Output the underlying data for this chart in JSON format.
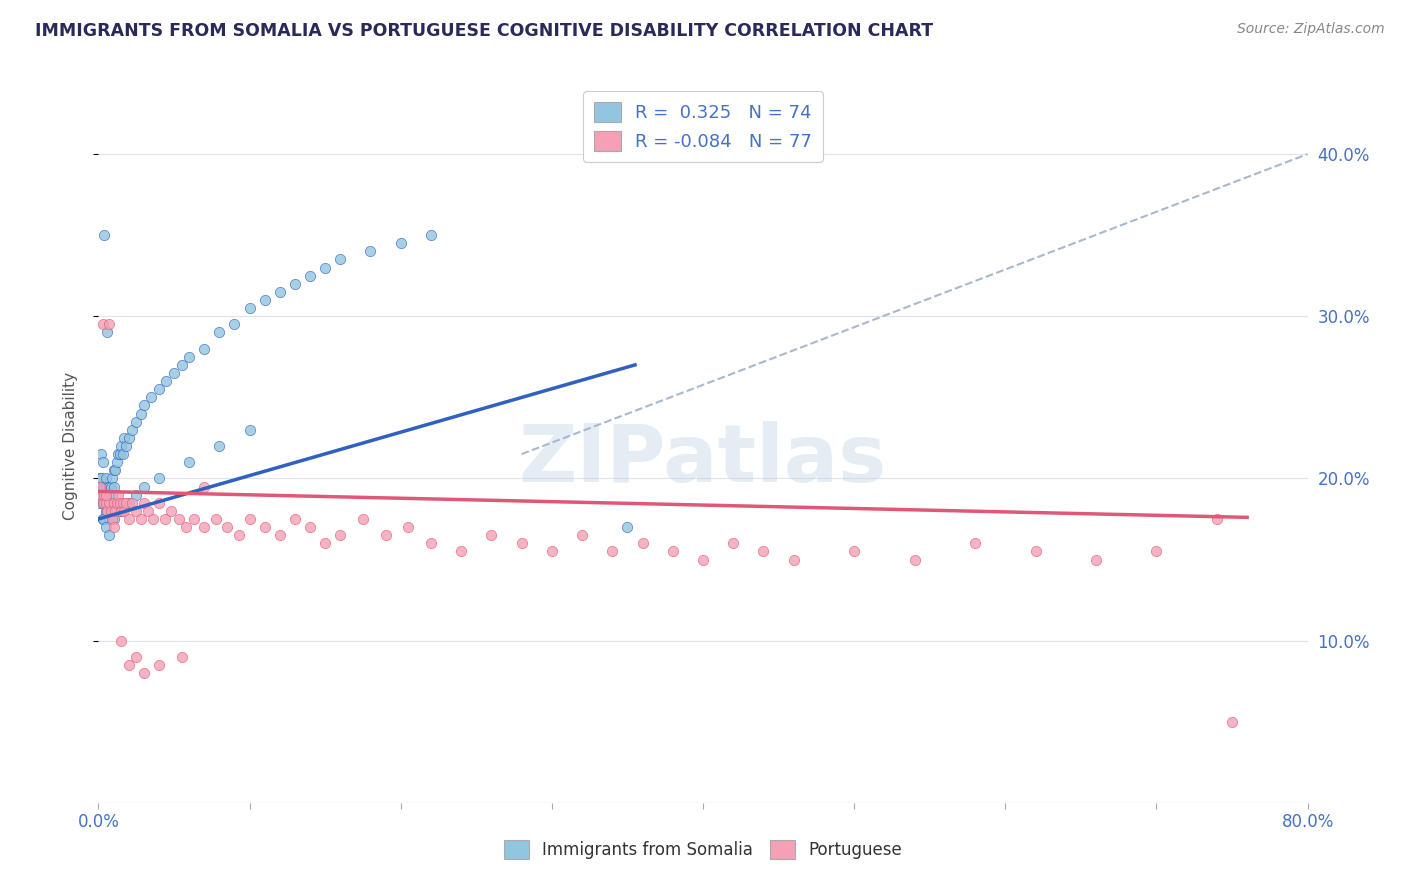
{
  "title": "IMMIGRANTS FROM SOMALIA VS PORTUGUESE COGNITIVE DISABILITY CORRELATION CHART",
  "source": "Source: ZipAtlas.com",
  "ylabel": "Cognitive Disability",
  "ylabel_right_ticks": [
    "10.0%",
    "20.0%",
    "30.0%",
    "40.0%"
  ],
  "ylabel_right_values": [
    0.1,
    0.2,
    0.3,
    0.4
  ],
  "xlim": [
    0.0,
    0.8
  ],
  "ylim": [
    0.0,
    0.44
  ],
  "blue_color": "#92c5de",
  "pink_color": "#f4a0b5",
  "blue_line_color": "#3060c0",
  "pink_line_color": "#e05878",
  "dashed_line_color": "#aab8cc",
  "title_color": "#2a2a5a",
  "source_color": "#888888",
  "axis_label_color": "#4472c4",
  "background_color": "#ffffff",
  "grid_color": "#dde4f0",
  "somalia_x": [
    0.001,
    0.001,
    0.001,
    0.002,
    0.002,
    0.002,
    0.003,
    0.003,
    0.003,
    0.003,
    0.004,
    0.004,
    0.004,
    0.005,
    0.005,
    0.005,
    0.006,
    0.006,
    0.007,
    0.007,
    0.007,
    0.008,
    0.008,
    0.009,
    0.009,
    0.01,
    0.01,
    0.011,
    0.012,
    0.013,
    0.014,
    0.015,
    0.016,
    0.017,
    0.018,
    0.02,
    0.022,
    0.025,
    0.028,
    0.03,
    0.035,
    0.04,
    0.045,
    0.05,
    0.055,
    0.06,
    0.07,
    0.08,
    0.09,
    0.1,
    0.11,
    0.12,
    0.13,
    0.14,
    0.15,
    0.16,
    0.18,
    0.2,
    0.22,
    0.003,
    0.005,
    0.007,
    0.01,
    0.015,
    0.02,
    0.025,
    0.03,
    0.04,
    0.06,
    0.08,
    0.1,
    0.004,
    0.006,
    0.35
  ],
  "somalia_y": [
    0.2,
    0.195,
    0.185,
    0.215,
    0.2,
    0.19,
    0.195,
    0.185,
    0.175,
    0.21,
    0.195,
    0.185,
    0.175,
    0.2,
    0.19,
    0.18,
    0.195,
    0.18,
    0.195,
    0.185,
    0.175,
    0.195,
    0.185,
    0.2,
    0.19,
    0.205,
    0.195,
    0.205,
    0.21,
    0.215,
    0.215,
    0.22,
    0.215,
    0.225,
    0.22,
    0.225,
    0.23,
    0.235,
    0.24,
    0.245,
    0.25,
    0.255,
    0.26,
    0.265,
    0.27,
    0.275,
    0.28,
    0.29,
    0.295,
    0.305,
    0.31,
    0.315,
    0.32,
    0.325,
    0.33,
    0.335,
    0.34,
    0.345,
    0.35,
    0.175,
    0.17,
    0.165,
    0.175,
    0.18,
    0.185,
    0.19,
    0.195,
    0.2,
    0.21,
    0.22,
    0.23,
    0.35,
    0.29,
    0.17
  ],
  "portuguese_x": [
    0.001,
    0.002,
    0.003,
    0.004,
    0.005,
    0.006,
    0.007,
    0.008,
    0.009,
    0.01,
    0.011,
    0.012,
    0.013,
    0.014,
    0.015,
    0.016,
    0.017,
    0.018,
    0.02,
    0.022,
    0.025,
    0.028,
    0.03,
    0.033,
    0.036,
    0.04,
    0.044,
    0.048,
    0.053,
    0.058,
    0.063,
    0.07,
    0.078,
    0.085,
    0.093,
    0.1,
    0.11,
    0.12,
    0.13,
    0.14,
    0.15,
    0.16,
    0.175,
    0.19,
    0.205,
    0.22,
    0.24,
    0.26,
    0.28,
    0.3,
    0.32,
    0.34,
    0.36,
    0.38,
    0.4,
    0.42,
    0.44,
    0.46,
    0.5,
    0.54,
    0.58,
    0.62,
    0.66,
    0.7,
    0.74,
    0.003,
    0.005,
    0.007,
    0.01,
    0.015,
    0.02,
    0.025,
    0.03,
    0.04,
    0.055,
    0.07,
    0.75
  ],
  "portuguese_y": [
    0.195,
    0.19,
    0.185,
    0.19,
    0.185,
    0.18,
    0.185,
    0.18,
    0.175,
    0.185,
    0.18,
    0.185,
    0.19,
    0.185,
    0.18,
    0.185,
    0.18,
    0.185,
    0.175,
    0.185,
    0.18,
    0.175,
    0.185,
    0.18,
    0.175,
    0.185,
    0.175,
    0.18,
    0.175,
    0.17,
    0.175,
    0.17,
    0.175,
    0.17,
    0.165,
    0.175,
    0.17,
    0.165,
    0.175,
    0.17,
    0.16,
    0.165,
    0.175,
    0.165,
    0.17,
    0.16,
    0.155,
    0.165,
    0.16,
    0.155,
    0.165,
    0.155,
    0.16,
    0.155,
    0.15,
    0.16,
    0.155,
    0.15,
    0.155,
    0.15,
    0.16,
    0.155,
    0.15,
    0.155,
    0.175,
    0.295,
    0.19,
    0.295,
    0.17,
    0.1,
    0.085,
    0.09,
    0.08,
    0.085,
    0.09,
    0.195,
    0.05
  ],
  "somalia_trend_x": [
    0.0,
    0.355
  ],
  "somalia_trend_y": [
    0.175,
    0.27
  ],
  "portuguese_trend_x": [
    0.0,
    0.76
  ],
  "portuguese_trend_y": [
    0.192,
    0.176
  ],
  "dashed_trend_x": [
    0.28,
    0.8
  ],
  "dashed_trend_y": [
    0.215,
    0.4
  ],
  "legend_label1": "R =  0.325   N = 74",
  "legend_label2": "R = -0.084   N = 77",
  "watermark": "ZIPatlas"
}
